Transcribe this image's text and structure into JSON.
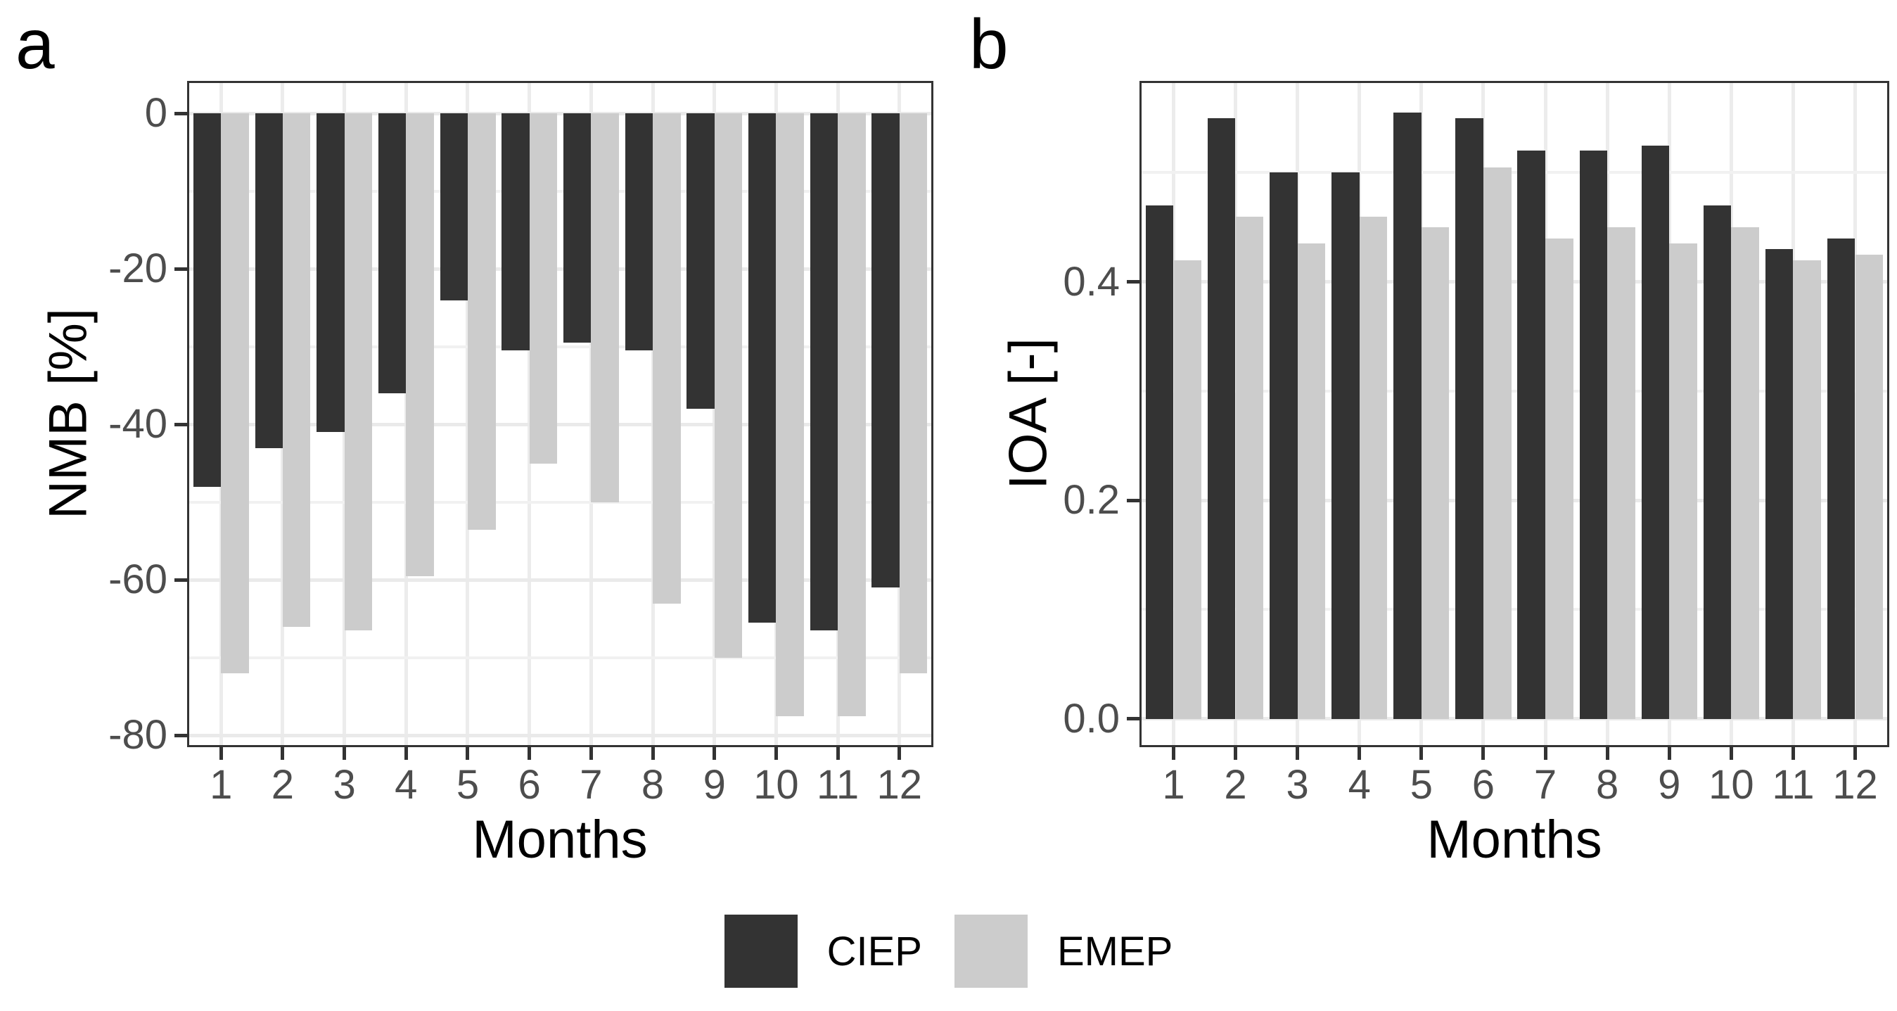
{
  "legend": {
    "position": "bottom",
    "entries": [
      {
        "label": "CIEP",
        "color": "#333333"
      },
      {
        "label": "EMEP",
        "color": "#cccccc"
      }
    ]
  },
  "chart_data": [
    {
      "type": "bar",
      "tag": "a",
      "title": "",
      "xlabel": "Months",
      "ylabel": "NMB [%]",
      "categories": [
        "1",
        "2",
        "3",
        "4",
        "5",
        "6",
        "7",
        "8",
        "9",
        "10",
        "11",
        "12"
      ],
      "series": [
        {
          "name": "CIEP",
          "color": "#333333",
          "values": [
            -48,
            -43,
            -41,
            -36,
            -24,
            -30.5,
            -29.5,
            -30.5,
            -38,
            -65.5,
            -66.5,
            -61
          ]
        },
        {
          "name": "EMEP",
          "color": "#cccccc",
          "values": [
            -72,
            -66,
            -66.5,
            -59.5,
            -53.5,
            -45,
            -50,
            -63,
            -70,
            -77.5,
            -77.5,
            -72
          ]
        }
      ],
      "ylim": [
        -81.5,
        4.2
      ],
      "xlim": [
        0.45,
        12.55
      ],
      "y_major_ticks": [
        0,
        -20,
        -40,
        -60,
        -80
      ],
      "y_tick_labels": [
        "0",
        "-20",
        "-40",
        "-60",
        "-80"
      ],
      "y_minor_ticks": [
        -10,
        -30,
        -50,
        -70
      ],
      "bar_group_width": 0.9,
      "grid": "major+minor",
      "legend_position": "bottom"
    },
    {
      "type": "bar",
      "tag": "b",
      "title": "",
      "xlabel": "Months",
      "ylabel": "IOA [-]",
      "categories": [
        "1",
        "2",
        "3",
        "4",
        "5",
        "6",
        "7",
        "8",
        "9",
        "10",
        "11",
        "12"
      ],
      "series": [
        {
          "name": "CIEP",
          "color": "#333333",
          "values": [
            0.47,
            0.55,
            0.5,
            0.5,
            0.555,
            0.55,
            0.52,
            0.52,
            0.525,
            0.47,
            0.43,
            0.44
          ]
        },
        {
          "name": "EMEP",
          "color": "#cccccc",
          "values": [
            0.42,
            0.46,
            0.435,
            0.46,
            0.45,
            0.505,
            0.44,
            0.45,
            0.435,
            0.45,
            0.42,
            0.425
          ]
        }
      ],
      "ylim": [
        -0.026,
        0.584
      ],
      "xlim": [
        0.45,
        12.55
      ],
      "y_major_ticks": [
        0.0,
        0.2,
        0.4
      ],
      "y_tick_labels": [
        "0.0",
        "0.2",
        "0.4"
      ],
      "y_minor_ticks": [
        0.1,
        0.3,
        0.5
      ],
      "bar_group_width": 0.9,
      "grid": "major+minor",
      "legend_position": "bottom"
    }
  ]
}
